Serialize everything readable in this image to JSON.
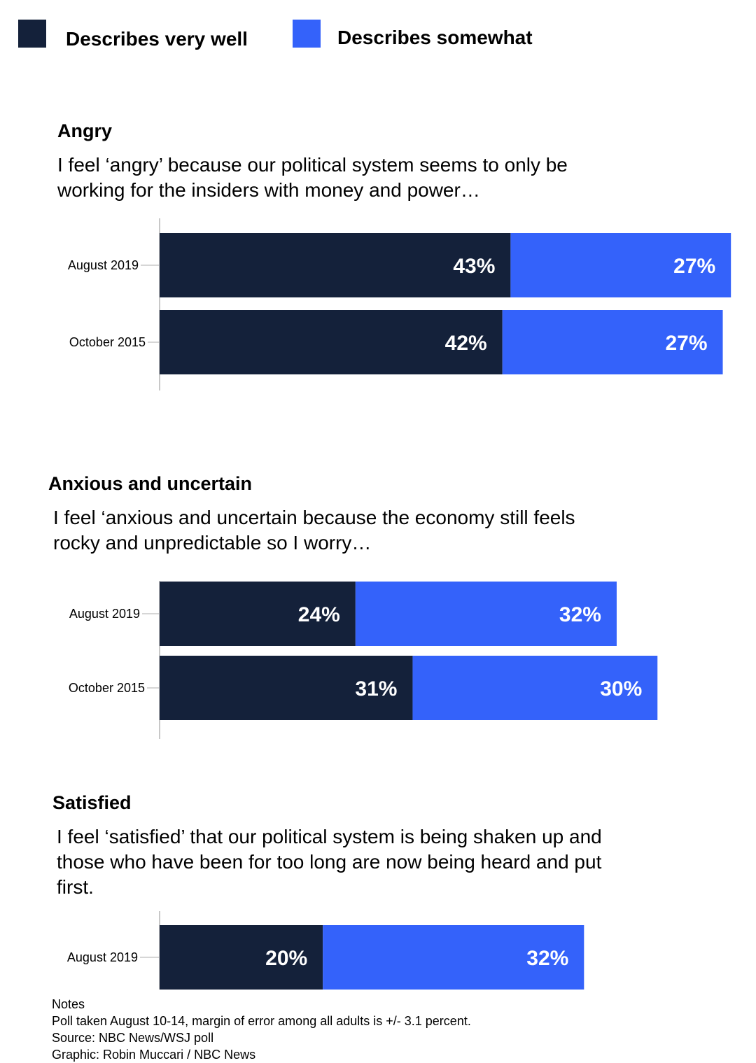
{
  "legend": [
    {
      "label": "Describes very well",
      "color": "#14213a"
    },
    {
      "label": "Describes somewhat",
      "color": "#3462fa"
    }
  ],
  "chart_data": [
    {
      "type": "bar",
      "orientation": "horizontal",
      "stacked": true,
      "title": "Angry",
      "subtitle": "I feel ‘angry’ because our political system seems to only be working for the insiders with money and power…",
      "categories": [
        "August 2019",
        "October 2015"
      ],
      "series": [
        {
          "name": "Describes very well",
          "values": [
            43,
            42
          ]
        },
        {
          "name": "Describes somewhat",
          "values": [
            27,
            27
          ]
        }
      ],
      "value_labels": [
        [
          "43%",
          "42%"
        ],
        [
          "27%",
          "27%"
        ]
      ],
      "unit": "%",
      "grid": false
    },
    {
      "type": "bar",
      "orientation": "horizontal",
      "stacked": true,
      "title": "Anxious and uncertain",
      "subtitle": "I feel ‘anxious and uncertain because the economy still feels rocky and unpredictable so I worry…",
      "categories": [
        "August 2019",
        "October 2015"
      ],
      "series": [
        {
          "name": "Describes very well",
          "values": [
            24,
            31
          ]
        },
        {
          "name": "Describes somewhat",
          "values": [
            32,
            30
          ]
        }
      ],
      "value_labels": [
        [
          "24%",
          "31%"
        ],
        [
          "32%",
          "30%"
        ]
      ],
      "unit": "%",
      "grid": false
    },
    {
      "type": "bar",
      "orientation": "horizontal",
      "stacked": true,
      "title": "Satisfied",
      "subtitle": "I feel ‘satisfied’ that our political system is being shaken up and those who have been for too long are now being heard and put first.",
      "categories": [
        "August 2019"
      ],
      "series": [
        {
          "name": "Describes very well",
          "values": [
            20
          ]
        },
        {
          "name": "Describes somewhat",
          "values": [
            32
          ]
        }
      ],
      "value_labels": [
        [
          "20%"
        ],
        [
          "32%"
        ]
      ],
      "unit": "%",
      "grid": false
    }
  ],
  "notes": {
    "heading": "Notes",
    "lines": [
      "Poll taken August 10-14, margin of error among all adults is +/- 3.1 percent.",
      "Source: NBC News/WSJ poll",
      "Graphic: Robin Muccari / NBC News"
    ]
  }
}
